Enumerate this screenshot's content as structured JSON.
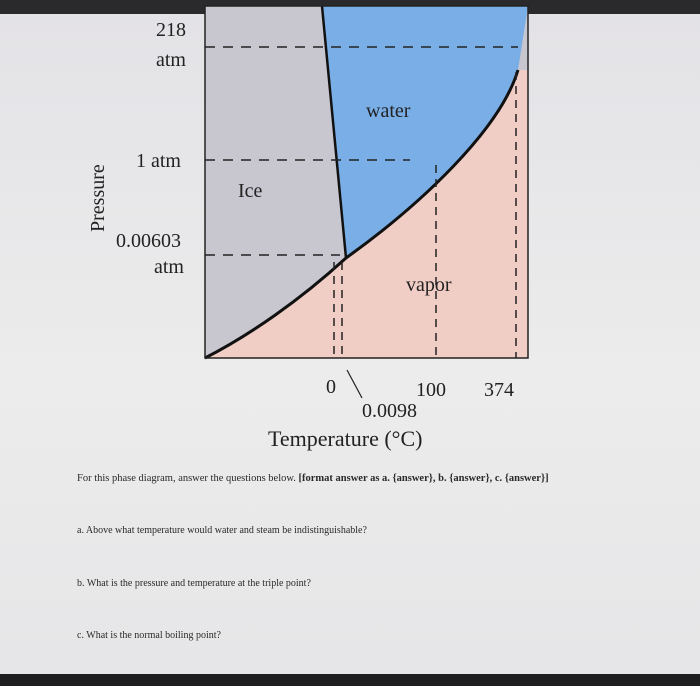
{
  "diagram": {
    "pressure_labels": {
      "p218_line1": "218",
      "p218_line2": "atm",
      "p1": "1 atm",
      "p0006_line1": "0.00603",
      "p0006_line2": "atm"
    },
    "y_axis_label": "Pressure",
    "regions": {
      "ice": "Ice",
      "water": "water",
      "vapor": "vapor"
    },
    "temperature_ticks": {
      "t0": "0",
      "t0098": "0.0098",
      "t100": "100",
      "t374": "374"
    },
    "x_axis_label": "Temperature (°C)",
    "colors": {
      "ice": "#c9c7cf",
      "water": "#79aee8",
      "vapor": "#f1cdc3"
    }
  },
  "prompt": {
    "text": "For this phase diagram, answer the questions below.",
    "format_bold": "[format answer as a. {answer}, b. {answer}, c. {answer}]"
  },
  "questions": {
    "a": "a. Above what temperature would water and steam be indistinguishable?",
    "b": "b. What is the pressure and temperature at the triple point?",
    "c": "c. What is the normal boiling point?"
  }
}
